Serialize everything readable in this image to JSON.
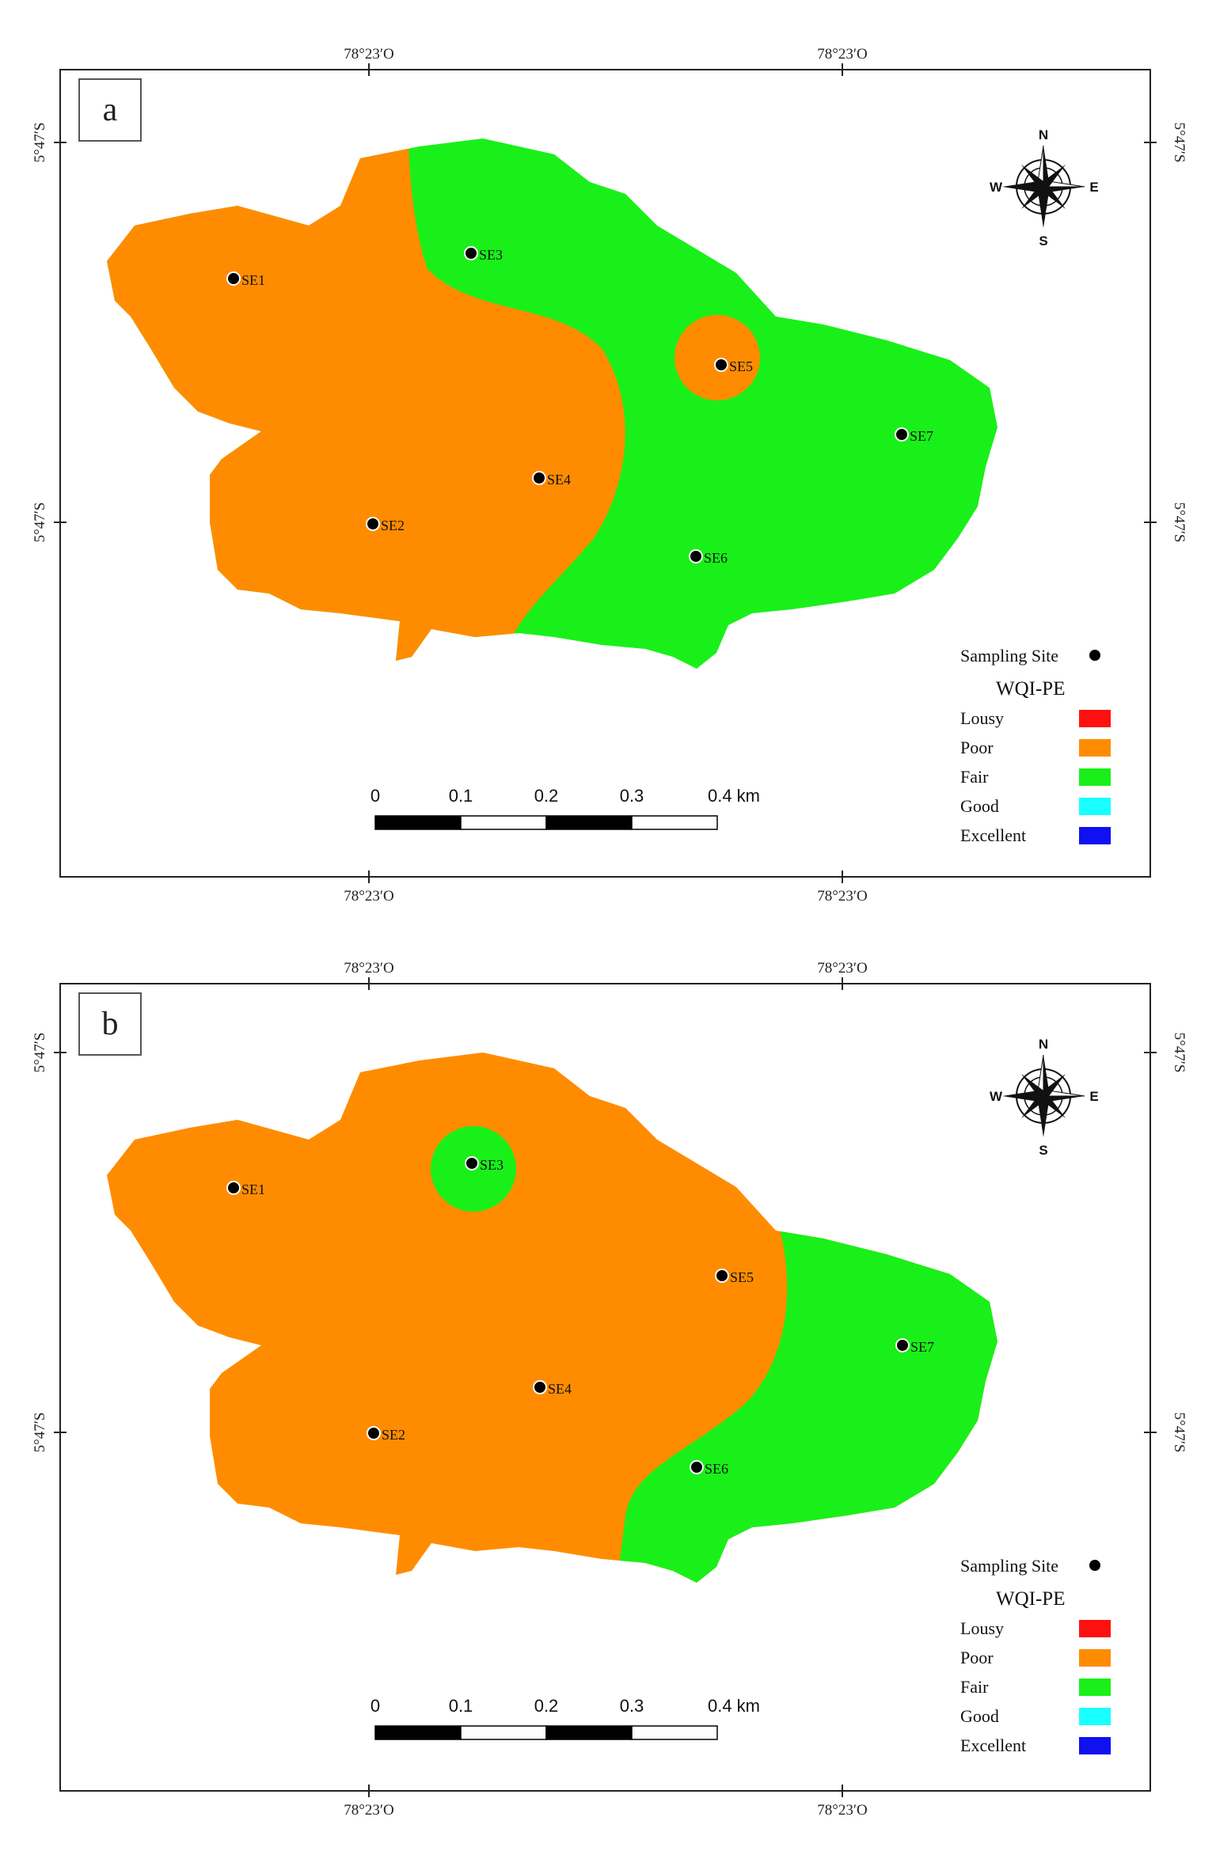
{
  "coords": {
    "lon": "78°23′O",
    "lat": "5°47′S"
  },
  "compass": {
    "n": "N",
    "s": "S",
    "e": "E",
    "w": "W"
  },
  "legend": {
    "sampling_site": "Sampling Site",
    "title": "WQI-PE",
    "items": [
      {
        "label": "Lousy",
        "color": "#ff1010"
      },
      {
        "label": "Poor",
        "color": "#ff8c00"
      },
      {
        "label": "Fair",
        "color": "#19f019"
      },
      {
        "label": "Good",
        "color": "#19ffff"
      },
      {
        "label": "Excellent",
        "color": "#1010f0"
      }
    ]
  },
  "scale": {
    "ticks": [
      "0",
      "0.1",
      "0.2",
      "0.3"
    ],
    "last": "0.4 km"
  },
  "sites": [
    "SE1",
    "SE2",
    "SE3",
    "SE4",
    "SE5",
    "SE6",
    "SE7"
  ],
  "panels": [
    {
      "letter": "a"
    },
    {
      "letter": "b"
    }
  ]
}
